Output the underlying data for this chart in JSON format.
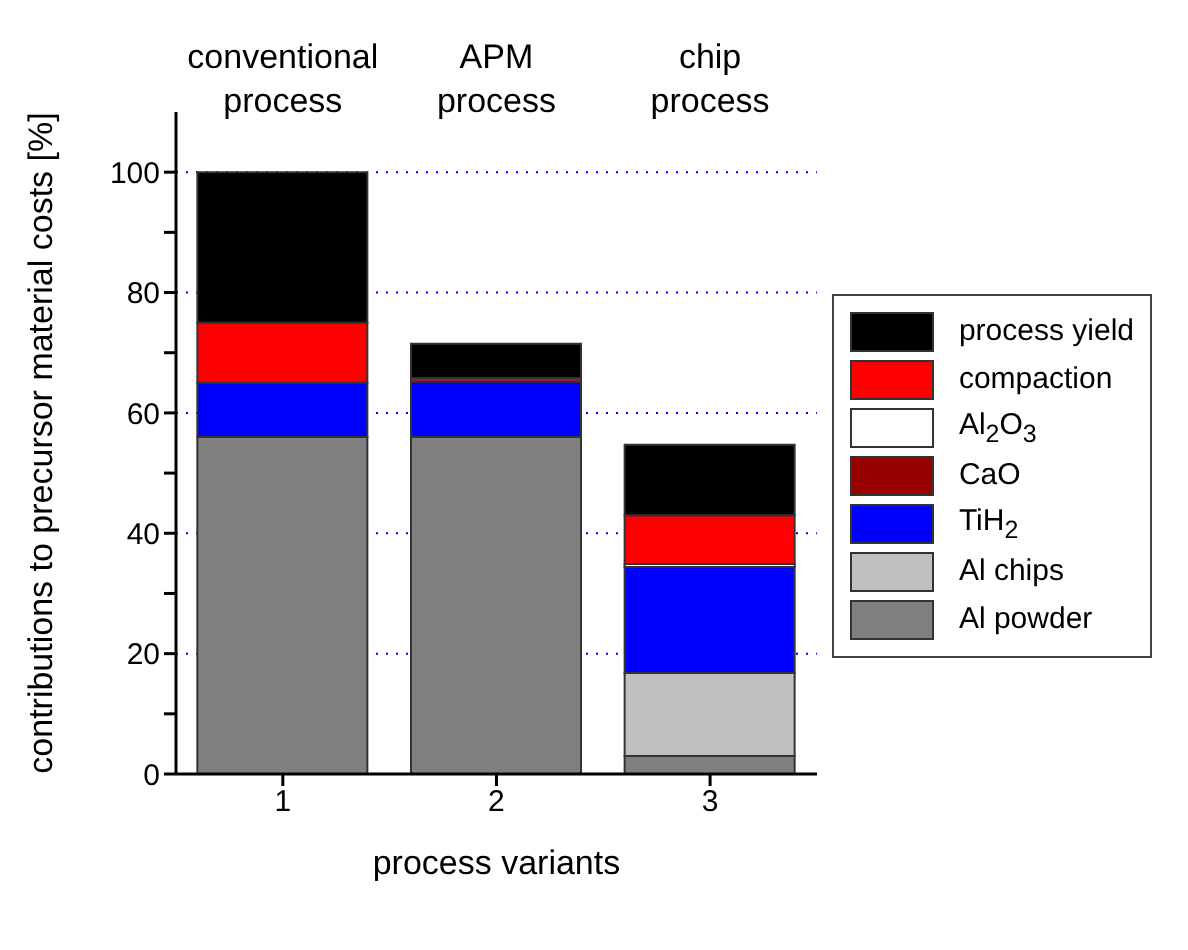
{
  "chart_data": {
    "type": "bar",
    "stacked": true,
    "xlabel": "process variants",
    "ylabel": "contributions to precursor material costs [%]",
    "categories": [
      "1",
      "2",
      "3"
    ],
    "series": [
      {
        "name": "Al powder",
        "color": "#808080",
        "values": [
          56,
          56,
          3
        ]
      },
      {
        "name": "Al chips",
        "color": "#c0c0c0",
        "values": [
          0,
          0,
          13.8
        ]
      },
      {
        "name": "TiH$_{2}$",
        "color": "#0000ff",
        "values": [
          9,
          9.2,
          17.6
        ]
      },
      {
        "name": "CaO",
        "color": "#990000",
        "values": [
          0,
          0,
          0
        ]
      },
      {
        "name": "Al$_{2}$O$_{3}$",
        "color": "#ffffff",
        "values": [
          0,
          0,
          0.5
        ]
      },
      {
        "name": "compaction",
        "color": "#ff0000",
        "values": [
          10,
          0.6,
          8.1
        ]
      },
      {
        "name": "process yield",
        "color": "#000000",
        "values": [
          25,
          5.7,
          11.7
        ]
      }
    ],
    "ylim": [
      0,
      110
    ],
    "yticks": [
      0,
      {
        "value": 10,
        "label": null
      },
      20,
      {
        "value": 30,
        "label": null
      },
      40,
      {
        "value": 50,
        "label": null
      },
      60,
      {
        "value": 70,
        "label": null
      },
      80,
      {
        "value": 90,
        "label": null
      },
      100
    ],
    "grid": "y",
    "legend": "right",
    "annotations": [
      "conventional process",
      "APM process",
      "chip process"
    ]
  }
}
